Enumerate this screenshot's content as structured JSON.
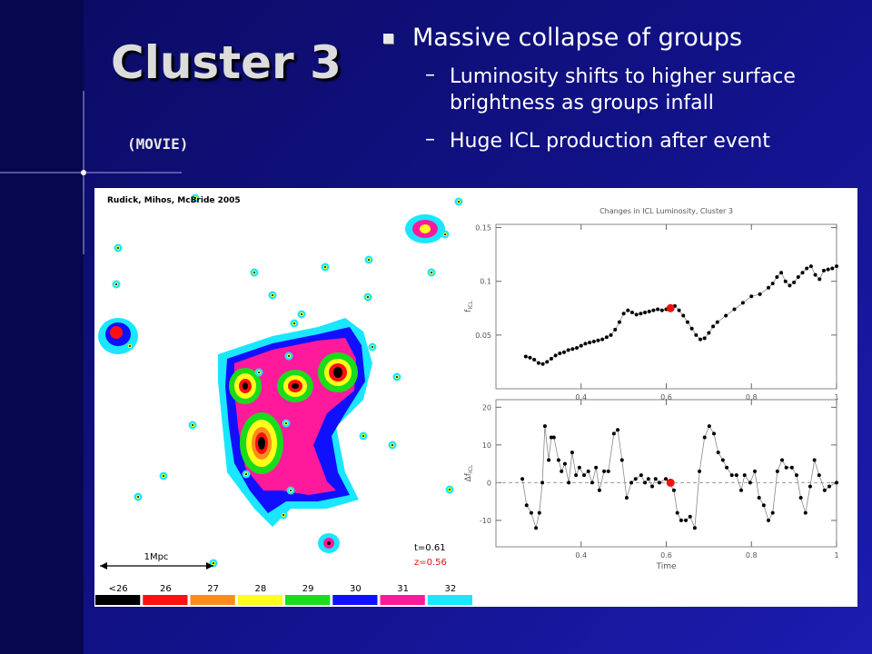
{
  "slide": {
    "title": "Cluster 3",
    "subtitle": "(MOVIE)",
    "bullets": [
      {
        "text": "Massive collapse of groups",
        "subitems": [
          "Luminosity shifts to higher surface brightness as groups infall",
          "Huge ICL production after event"
        ]
      }
    ]
  },
  "map": {
    "credit": "Rudick, Mihos, McBride 2005",
    "scale_label": "1Mpc",
    "time_label": "t=0.61",
    "redshift_label": "z=0.56",
    "colorbar": {
      "labels": [
        "<26",
        "26",
        "27",
        "28",
        "29",
        "30",
        "31",
        "32"
      ],
      "colors": [
        "#000000",
        "#ff1010",
        "#ff8c1a",
        "#ffff1a",
        "#1adc1a",
        "#1010ff",
        "#ff1a9c",
        "#1ae6ff"
      ]
    }
  },
  "chart_data": [
    {
      "type": "line",
      "title": "Changes in ICL Luminosity, Cluster 3",
      "y_label": {
        "main": "f",
        "sub": "ICL"
      },
      "xlim": [
        0.2,
        1.0
      ],
      "ylim": [
        0,
        0.153
      ],
      "xticks": [
        0.4,
        0.6,
        0.8,
        1
      ],
      "yticks": [
        0.05,
        0.1,
        0.15
      ],
      "series": [
        {
          "color": "#000000",
          "x": [
            0.27,
            0.28,
            0.29,
            0.3,
            0.31,
            0.32,
            0.33,
            0.34,
            0.35,
            0.36,
            0.37,
            0.38,
            0.39,
            0.4,
            0.41,
            0.42,
            0.43,
            0.44,
            0.45,
            0.46,
            0.47,
            0.48,
            0.49,
            0.5,
            0.51,
            0.52,
            0.53,
            0.54,
            0.55,
            0.56,
            0.57,
            0.58,
            0.59,
            0.6,
            0.62,
            0.63,
            0.64,
            0.65,
            0.66,
            0.67,
            0.68,
            0.69,
            0.7,
            0.71,
            0.72,
            0.74,
            0.76,
            0.78,
            0.8,
            0.82,
            0.84,
            0.85,
            0.86,
            0.87,
            0.88,
            0.89,
            0.9,
            0.91,
            0.92,
            0.93,
            0.94,
            0.95,
            0.96,
            0.97,
            0.98,
            0.99,
            1.0
          ],
          "values": [
            0.03,
            0.029,
            0.027,
            0.024,
            0.023,
            0.025,
            0.028,
            0.031,
            0.033,
            0.034,
            0.036,
            0.037,
            0.038,
            0.04,
            0.042,
            0.043,
            0.044,
            0.045,
            0.046,
            0.048,
            0.05,
            0.055,
            0.062,
            0.07,
            0.073,
            0.071,
            0.069,
            0.07,
            0.071,
            0.072,
            0.073,
            0.074,
            0.073,
            0.074,
            0.077,
            0.073,
            0.068,
            0.062,
            0.056,
            0.05,
            0.046,
            0.047,
            0.052,
            0.058,
            0.062,
            0.068,
            0.074,
            0.08,
            0.086,
            0.088,
            0.094,
            0.098,
            0.104,
            0.108,
            0.1,
            0.096,
            0.099,
            0.104,
            0.108,
            0.112,
            0.114,
            0.106,
            0.102,
            0.11,
            0.111,
            0.112,
            0.114
          ]
        }
      ],
      "marker": {
        "x": 0.61,
        "value": 0.075,
        "color": "#ee1111"
      }
    },
    {
      "type": "line",
      "x_label": "Time",
      "y_label": {
        "main": "Δf",
        "sub": "ICL"
      },
      "zero_line": true,
      "xlim": [
        0.2,
        1.0
      ],
      "ylim": [
        -17,
        22
      ],
      "xticks": [
        0.4,
        0.6,
        0.8,
        1
      ],
      "yticks": [
        -10,
        0,
        10,
        20
      ],
      "series": [
        {
          "color": "#000000",
          "x": [
            0.262,
            0.272,
            0.283,
            0.294,
            0.302,
            0.309,
            0.315,
            0.324,
            0.33,
            0.336,
            0.347,
            0.354,
            0.362,
            0.371,
            0.379,
            0.388,
            0.396,
            0.407,
            0.417,
            0.426,
            0.435,
            0.443,
            0.454,
            0.464,
            0.477,
            0.486,
            0.496,
            0.507,
            0.518,
            0.528,
            0.541,
            0.55,
            0.558,
            0.567,
            0.575,
            0.584,
            0.599,
            0.618,
            0.626,
            0.635,
            0.646,
            0.656,
            0.667,
            0.678,
            0.69,
            0.701,
            0.712,
            0.722,
            0.733,
            0.742,
            0.754,
            0.765,
            0.776,
            0.784,
            0.797,
            0.808,
            0.818,
            0.829,
            0.84,
            0.85,
            0.861,
            0.872,
            0.882,
            0.895,
            0.906,
            0.916,
            0.927,
            0.938,
            0.948,
            0.959,
            0.972,
            0.983,
            1.0
          ],
          "values": [
            1,
            -6,
            -8,
            -12,
            -8,
            0,
            15,
            6,
            12,
            12,
            6,
            3,
            5,
            0,
            8,
            2,
            4,
            2,
            3,
            0,
            4,
            -2,
            3,
            3,
            13,
            14,
            6,
            -4,
            0,
            1,
            2,
            0,
            1,
            -1,
            1,
            0,
            1,
            -2,
            -8,
            -10,
            -10,
            -9,
            -12,
            3,
            12,
            15,
            13,
            8,
            6,
            4,
            2,
            2,
            -2,
            2,
            0,
            3,
            -4,
            -6,
            -10,
            -8,
            3,
            6,
            4,
            4,
            2,
            -4,
            -8,
            -1,
            6,
            2,
            -2,
            -1,
            0
          ]
        }
      ],
      "marker": {
        "x": 0.61,
        "value": 0,
        "color": "#ee1111"
      }
    }
  ]
}
